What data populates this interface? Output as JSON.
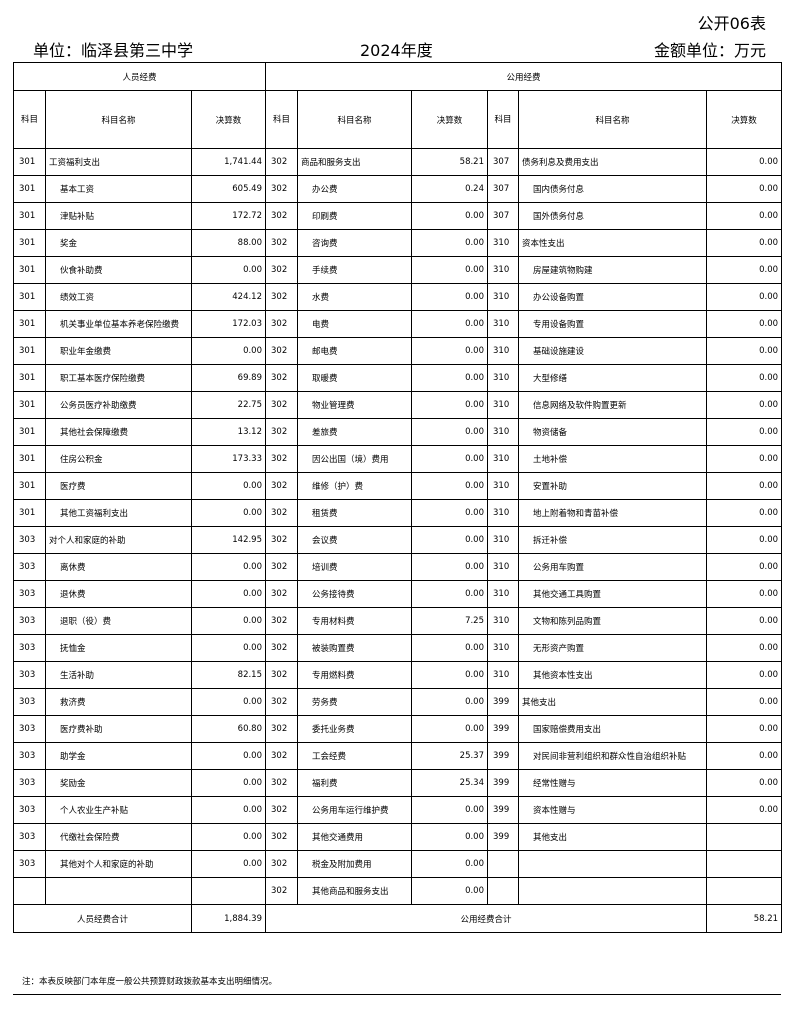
{
  "header": {
    "form_no": "公开06表",
    "unit": "单位：临泽县第三中学",
    "year": "2024年度",
    "amount_unit": "金额单位：万元"
  },
  "table": {
    "group_personnel": "人员经费",
    "group_public": "公用经费",
    "col_code": "科目",
    "col_name": "科目名称",
    "col_value": "决算数",
    "personnel_rows": [
      {
        "code": "301",
        "name": "工资福利支出",
        "value": "1,741.44",
        "top": true
      },
      {
        "code": "301",
        "name": "基本工资",
        "value": "605.49"
      },
      {
        "code": "301",
        "name": "津贴补贴",
        "value": "172.72"
      },
      {
        "code": "301",
        "name": "奖金",
        "value": "88.00"
      },
      {
        "code": "301",
        "name": "伙食补助费",
        "value": "0.00"
      },
      {
        "code": "301",
        "name": "绩效工资",
        "value": "424.12"
      },
      {
        "code": "301",
        "name": "机关事业单位基本养老保险缴费",
        "value": "172.03"
      },
      {
        "code": "301",
        "name": "职业年金缴费",
        "value": "0.00"
      },
      {
        "code": "301",
        "name": "职工基本医疗保险缴费",
        "value": "69.89"
      },
      {
        "code": "301",
        "name": "公务员医疗补助缴费",
        "value": "22.75"
      },
      {
        "code": "301",
        "name": "其他社会保障缴费",
        "value": "13.12"
      },
      {
        "code": "301",
        "name": "住房公积金",
        "value": "173.33"
      },
      {
        "code": "301",
        "name": "医疗费",
        "value": "0.00"
      },
      {
        "code": "301",
        "name": "其他工资福利支出",
        "value": "0.00"
      },
      {
        "code": "303",
        "name": "对个人和家庭的补助",
        "value": "142.95",
        "top": true
      },
      {
        "code": "303",
        "name": "离休费",
        "value": "0.00"
      },
      {
        "code": "303",
        "name": "退休费",
        "value": "0.00"
      },
      {
        "code": "303",
        "name": "退职（役）费",
        "value": "0.00"
      },
      {
        "code": "303",
        "name": "抚恤金",
        "value": "0.00"
      },
      {
        "code": "303",
        "name": "生活补助",
        "value": "82.15"
      },
      {
        "code": "303",
        "name": "救济费",
        "value": "0.00"
      },
      {
        "code": "303",
        "name": "医疗费补助",
        "value": "60.80"
      },
      {
        "code": "303",
        "name": "助学金",
        "value": "0.00"
      },
      {
        "code": "303",
        "name": "奖励金",
        "value": "0.00"
      },
      {
        "code": "303",
        "name": "个人农业生产补贴",
        "value": "0.00"
      },
      {
        "code": "303",
        "name": "代缴社会保险费",
        "value": "0.00"
      },
      {
        "code": "303",
        "name": "其他对个人和家庭的补助",
        "value": "0.00"
      }
    ],
    "public_rows_a": [
      {
        "code": "302",
        "name": "商品和服务支出",
        "value": "58.21",
        "top": true
      },
      {
        "code": "302",
        "name": "办公费",
        "value": "0.24"
      },
      {
        "code": "302",
        "name": "印刷费",
        "value": "0.00"
      },
      {
        "code": "302",
        "name": "咨询费",
        "value": "0.00"
      },
      {
        "code": "302",
        "name": "手续费",
        "value": "0.00"
      },
      {
        "code": "302",
        "name": "水费",
        "value": "0.00"
      },
      {
        "code": "302",
        "name": "电费",
        "value": "0.00"
      },
      {
        "code": "302",
        "name": "邮电费",
        "value": "0.00"
      },
      {
        "code": "302",
        "name": "取暖费",
        "value": "0.00"
      },
      {
        "code": "302",
        "name": "物业管理费",
        "value": "0.00"
      },
      {
        "code": "302",
        "name": "差旅费",
        "value": "0.00"
      },
      {
        "code": "302",
        "name": "因公出国（境）费用",
        "value": "0.00"
      },
      {
        "code": "302",
        "name": "维修（护）费",
        "value": "0.00"
      },
      {
        "code": "302",
        "name": "租赁费",
        "value": "0.00"
      },
      {
        "code": "302",
        "name": "会议费",
        "value": "0.00"
      },
      {
        "code": "302",
        "name": "培训费",
        "value": "0.00"
      },
      {
        "code": "302",
        "name": "公务接待费",
        "value": "0.00"
      },
      {
        "code": "302",
        "name": "专用材料费",
        "value": "7.25"
      },
      {
        "code": "302",
        "name": "被装购置费",
        "value": "0.00"
      },
      {
        "code": "302",
        "name": "专用燃料费",
        "value": "0.00"
      },
      {
        "code": "302",
        "name": "劳务费",
        "value": "0.00"
      },
      {
        "code": "302",
        "name": "委托业务费",
        "value": "0.00"
      },
      {
        "code": "302",
        "name": "工会经费",
        "value": "25.37"
      },
      {
        "code": "302",
        "name": "福利费",
        "value": "25.34"
      },
      {
        "code": "302",
        "name": "公务用车运行维护费",
        "value": "0.00"
      },
      {
        "code": "302",
        "name": "其他交通费用",
        "value": "0.00"
      },
      {
        "code": "302",
        "name": "税金及附加费用",
        "value": "0.00"
      },
      {
        "code": "302",
        "name": "其他商品和服务支出",
        "value": "0.00"
      }
    ],
    "public_rows_b": [
      {
        "code": "307",
        "name": "债务利息及费用支出",
        "value": "0.00",
        "top": true
      },
      {
        "code": "307",
        "name": "国内债务付息",
        "value": "0.00"
      },
      {
        "code": "307",
        "name": "国外债务付息",
        "value": "0.00"
      },
      {
        "code": "310",
        "name": "资本性支出",
        "value": "0.00",
        "top": true
      },
      {
        "code": "310",
        "name": "房屋建筑物购建",
        "value": "0.00"
      },
      {
        "code": "310",
        "name": "办公设备购置",
        "value": "0.00"
      },
      {
        "code": "310",
        "name": "专用设备购置",
        "value": "0.00"
      },
      {
        "code": "310",
        "name": "基础设施建设",
        "value": "0.00"
      },
      {
        "code": "310",
        "name": "大型修缮",
        "value": "0.00"
      },
      {
        "code": "310",
        "name": "信息网络及软件购置更新",
        "value": "0.00"
      },
      {
        "code": "310",
        "name": "物资储备",
        "value": "0.00"
      },
      {
        "code": "310",
        "name": "土地补偿",
        "value": "0.00"
      },
      {
        "code": "310",
        "name": "安置补助",
        "value": "0.00"
      },
      {
        "code": "310",
        "name": "地上附着物和青苗补偿",
        "value": "0.00"
      },
      {
        "code": "310",
        "name": "拆迁补偿",
        "value": "0.00"
      },
      {
        "code": "310",
        "name": "公务用车购置",
        "value": "0.00"
      },
      {
        "code": "310",
        "name": "其他交通工具购置",
        "value": "0.00"
      },
      {
        "code": "310",
        "name": "文物和陈列品购置",
        "value": "0.00"
      },
      {
        "code": "310",
        "name": "无形资产购置",
        "value": "0.00"
      },
      {
        "code": "310",
        "name": "其他资本性支出",
        "value": "0.00"
      },
      {
        "code": "399",
        "name": "其他支出",
        "value": "0.00",
        "top": true
      },
      {
        "code": "399",
        "name": "国家赔偿费用支出",
        "value": "0.00"
      },
      {
        "code": "399",
        "name": "对民间非营利组织和群众性自治组织补贴",
        "value": "0.00"
      },
      {
        "code": "399",
        "name": "经常性赠与",
        "value": "0.00"
      },
      {
        "code": "399",
        "name": "资本性赠与",
        "value": "0.00"
      },
      {
        "code": "399",
        "name": "其他支出",
        "value": ""
      }
    ],
    "personnel_total_label": "人员经费合计",
    "personnel_total": "1,884.39",
    "public_total_label": "公用经费合计",
    "public_total": "58.21"
  },
  "note": "注：本表反映部门本年度一般公共预算财政拨款基本支出明细情况。"
}
